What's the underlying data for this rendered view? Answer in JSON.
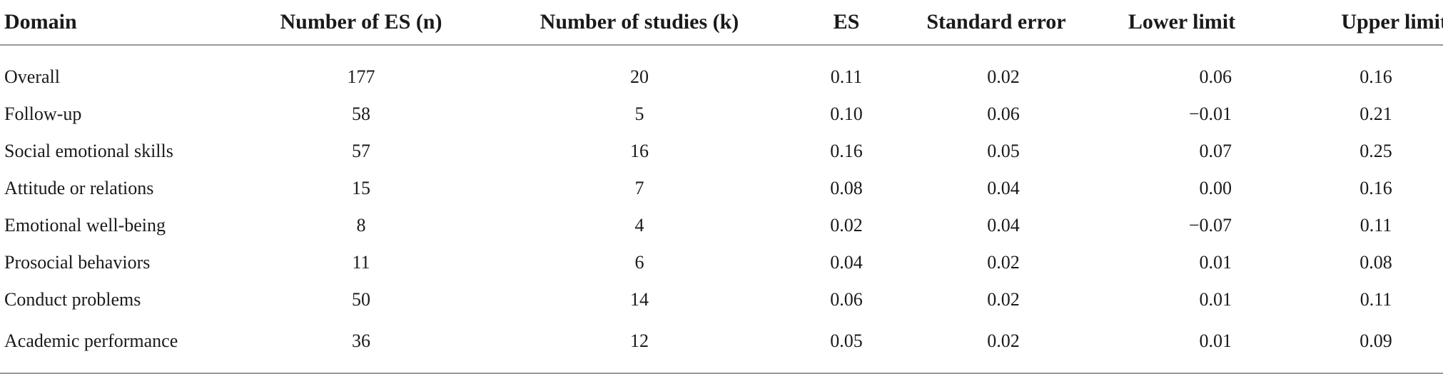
{
  "table": {
    "headers": [
      "Domain",
      "Number of ES (n)",
      "Number of studies (k)",
      "ES",
      "Standard error",
      "Lower limit",
      "Upper limit"
    ],
    "rows": [
      [
        "Overall",
        "177",
        "20",
        "0.11",
        "0.02",
        "0.06",
        "0.16"
      ],
      [
        "Follow-up",
        "58",
        "5",
        "0.10",
        "0.06",
        "−0.01",
        "0.21"
      ],
      [
        "Social emotional skills",
        "57",
        "16",
        "0.16",
        "0.05",
        "0.07",
        "0.25"
      ],
      [
        "Attitude or relations",
        "15",
        "7",
        "0.08",
        "0.04",
        "0.00",
        "0.16"
      ],
      [
        "Emotional well-being",
        "8",
        "4",
        "0.02",
        "0.04",
        "−0.07",
        "0.11"
      ],
      [
        "Prosocial behaviors",
        "11",
        "6",
        "0.04",
        "0.02",
        "0.01",
        "0.08"
      ],
      [
        "Conduct problems",
        "50",
        "14",
        "0.06",
        "0.02",
        "0.01",
        "0.11"
      ],
      [
        "Academic performance",
        "36",
        "12",
        "0.05",
        "0.02",
        "0.01",
        "0.09"
      ]
    ]
  }
}
